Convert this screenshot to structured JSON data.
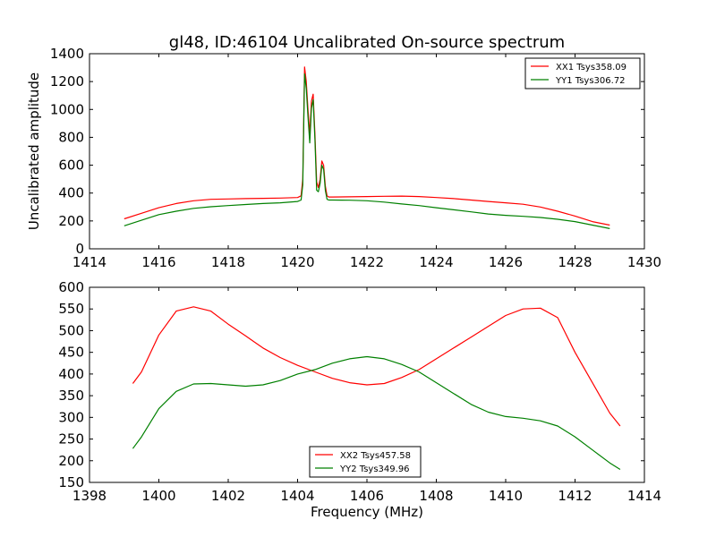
{
  "chart_data": [
    {
      "type": "line",
      "title": "gl48, ID:46104 Uncalibrated On-source spectrum",
      "xlabel": "",
      "ylabel": "Uncalibrated amplitude",
      "xlim": [
        1414,
        1430
      ],
      "ylim": [
        0,
        1400
      ],
      "xticks": [
        "1414",
        "1416",
        "1418",
        "1420",
        "1422",
        "1424",
        "1426",
        "1428",
        "1430"
      ],
      "yticks": [
        "0",
        "200",
        "400",
        "600",
        "800",
        "1000",
        "1200",
        "1400"
      ],
      "legend_position": "upper-right",
      "series": [
        {
          "name": "XX1 Tsys358.09",
          "color": "#ff0000",
          "x": [
            1415.0,
            1415.5,
            1416.0,
            1416.5,
            1417.0,
            1417.5,
            1418.0,
            1418.5,
            1419.0,
            1419.5,
            1420.0,
            1420.1,
            1420.15,
            1420.2,
            1420.25,
            1420.3,
            1420.35,
            1420.4,
            1420.45,
            1420.5,
            1420.55,
            1420.6,
            1420.65,
            1420.7,
            1420.75,
            1420.8,
            1420.85,
            1420.9,
            1421.0,
            1421.5,
            1422.0,
            1422.5,
            1423.0,
            1423.5,
            1424.0,
            1424.5,
            1425.0,
            1425.5,
            1426.0,
            1426.5,
            1427.0,
            1427.5,
            1428.0,
            1428.5,
            1429.0
          ],
          "y": [
            215,
            255,
            295,
            325,
            345,
            355,
            358,
            360,
            362,
            364,
            368,
            380,
            500,
            1305,
            1200,
            1000,
            820,
            1060,
            1110,
            820,
            480,
            440,
            500,
            630,
            600,
            450,
            380,
            372,
            372,
            373,
            375,
            377,
            378,
            375,
            368,
            360,
            350,
            340,
            330,
            320,
            300,
            270,
            235,
            195,
            170
          ]
        },
        {
          "name": "YY1 Tsys306.72",
          "color": "#008000",
          "x": [
            1415.0,
            1415.5,
            1416.0,
            1416.5,
            1417.0,
            1417.5,
            1418.0,
            1418.5,
            1419.0,
            1419.5,
            1420.0,
            1420.1,
            1420.15,
            1420.2,
            1420.25,
            1420.3,
            1420.35,
            1420.4,
            1420.45,
            1420.5,
            1420.55,
            1420.6,
            1420.65,
            1420.7,
            1420.75,
            1420.8,
            1420.85,
            1420.9,
            1421.0,
            1421.5,
            1422.0,
            1422.5,
            1423.0,
            1423.5,
            1424.0,
            1424.5,
            1425.0,
            1425.5,
            1426.0,
            1426.5,
            1427.0,
            1427.5,
            1428.0,
            1428.5,
            1429.0
          ],
          "y": [
            165,
            205,
            245,
            270,
            290,
            302,
            310,
            318,
            325,
            330,
            340,
            350,
            460,
            1255,
            1150,
            950,
            760,
            1010,
            1070,
            780,
            420,
            410,
            470,
            600,
            570,
            420,
            355,
            350,
            350,
            349,
            345,
            335,
            322,
            310,
            295,
            280,
            265,
            250,
            240,
            233,
            225,
            212,
            195,
            170,
            145
          ]
        }
      ]
    },
    {
      "type": "line",
      "title": "",
      "xlabel": "Frequency (MHz)",
      "ylabel": "",
      "xlim": [
        1398,
        1414
      ],
      "ylim": [
        150,
        600
      ],
      "xticks": [
        "1398",
        "1400",
        "1402",
        "1404",
        "1406",
        "1408",
        "1410",
        "1412",
        "1414"
      ],
      "yticks": [
        "150",
        "200",
        "250",
        "300",
        "350",
        "400",
        "450",
        "500",
        "550",
        "600"
      ],
      "legend_position": "lower-center",
      "series": [
        {
          "name": "XX2 Tsys457.58",
          "color": "#ff0000",
          "x": [
            1399.25,
            1399.5,
            1400.0,
            1400.5,
            1401.0,
            1401.5,
            1402.0,
            1402.5,
            1403.0,
            1403.5,
            1404.0,
            1404.5,
            1405.0,
            1405.5,
            1406.0,
            1406.5,
            1407.0,
            1407.5,
            1408.0,
            1408.5,
            1409.0,
            1409.5,
            1410.0,
            1410.5,
            1411.0,
            1411.5,
            1412.0,
            1412.5,
            1413.0,
            1413.3
          ],
          "y": [
            378,
            405,
            490,
            545,
            555,
            545,
            515,
            488,
            460,
            438,
            420,
            405,
            390,
            380,
            375,
            378,
            392,
            410,
            435,
            460,
            485,
            510,
            535,
            550,
            552,
            530,
            450,
            380,
            310,
            280
          ]
        },
        {
          "name": "YY2 Tsys349.96",
          "color": "#008000",
          "x": [
            1399.25,
            1399.5,
            1400.0,
            1400.5,
            1401.0,
            1401.5,
            1402.0,
            1402.5,
            1403.0,
            1403.5,
            1404.0,
            1404.5,
            1405.0,
            1405.5,
            1406.0,
            1406.5,
            1407.0,
            1407.5,
            1408.0,
            1408.5,
            1409.0,
            1409.5,
            1410.0,
            1410.5,
            1411.0,
            1411.5,
            1412.0,
            1412.5,
            1413.0,
            1413.3
          ],
          "y": [
            228,
            255,
            320,
            360,
            377,
            378,
            375,
            372,
            375,
            385,
            400,
            410,
            425,
            435,
            440,
            435,
            422,
            405,
            380,
            355,
            330,
            312,
            302,
            298,
            292,
            280,
            255,
            225,
            195,
            180
          ]
        }
      ]
    }
  ]
}
